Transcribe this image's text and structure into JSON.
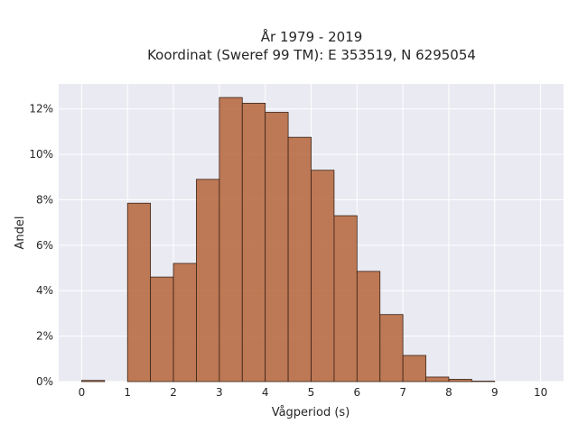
{
  "chart_data": {
    "type": "bar",
    "title": "År 1979 - 2019",
    "subtitle": "Koordinat (Sweref 99 TM): E 353519, N 6295054",
    "xlabel": "Vågperiod (s)",
    "ylabel": "Andel",
    "xlim": [
      -0.5,
      10.5
    ],
    "ylim": [
      0,
      13.1
    ],
    "x_ticks": [
      "0",
      "1",
      "2",
      "3",
      "4",
      "5",
      "6",
      "7",
      "8",
      "9",
      "10"
    ],
    "y_ticks": [
      "0%",
      "2%",
      "4%",
      "6%",
      "8%",
      "10%",
      "12%"
    ],
    "bin_width": 0.5,
    "bins_start": [
      0,
      0.5,
      1,
      1.5,
      2,
      2.5,
      3,
      3.5,
      4,
      4.5,
      5,
      5.5,
      6,
      6.5,
      7,
      7.5,
      8,
      8.5,
      9,
      9.5
    ],
    "values": [
      0.05,
      0,
      7.85,
      4.6,
      5.2,
      8.9,
      12.5,
      12.25,
      11.85,
      10.75,
      9.3,
      7.3,
      4.85,
      2.95,
      1.15,
      0.2,
      0.1,
      0.02,
      0,
      0
    ],
    "bar_color": "#b5643a",
    "bar_edge_color": "#3a2418",
    "background_color": "#eaeaf2",
    "grid": true
  }
}
